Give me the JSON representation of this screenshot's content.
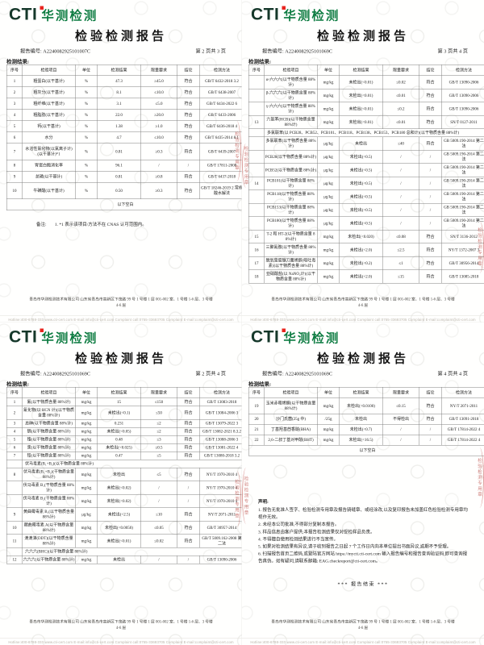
{
  "brand": {
    "logo_cti": "CTI",
    "logo_cn": "华测检测"
  },
  "report": {
    "title": "检验检测报告",
    "report_no_label": "报告编号: ",
    "results_label": "检测结果:",
    "columns": [
      "序号",
      "检验项目",
      "单位",
      "检测结果",
      "限量要求",
      "结论",
      "检测方法"
    ],
    "seal_text": "检验检测专用章",
    "footer_address": "青岛市华测检测技术有限公司 山东省青岛市高新区下茂路 99 号 1 号楼 1 层 001-002 室、1 号楼 1-6 层、3 号楼 4-6 层",
    "footer_contacts": "Hotline:400-6788-333    www.cti-cert.com    E-mail:info@cti-cert.com    Complaint call:0755-33683705    Complaint E-mail:complaint@cti-cert.com"
  },
  "pages": [
    {
      "report_no": "A2240082925101007C",
      "page_info": "第 2 页共 3 页",
      "rows": [
        [
          "1",
          "粗蛋白(以干基计)",
          "%",
          "47.3",
          "≥45.0",
          "符合",
          "GB/T 6432-2018 3.2"
        ],
        [
          "2",
          "粗灰分(以干基计)",
          "%",
          "8.1",
          "≤10.0",
          "符合",
          "GB/T 6438-2007"
        ],
        [
          "3",
          "粗纤维(以干基计)",
          "%",
          "3.1",
          "≤5.0",
          "符合",
          "GB/T 6434-2022 6"
        ],
        [
          "4",
          "粗脂肪(以干基计)",
          "%",
          "22.0",
          "≥20.0",
          "符合",
          "GB/T 6433-2006"
        ],
        [
          "5",
          "钙(以干基计)",
          "%",
          "1.38",
          "≥1.0",
          "符合",
          "GB/T 6436-2018 4"
        ],
        [
          "6",
          "水分",
          "%",
          "4.7",
          "≤10.0",
          "符合",
          "GB/T 6435-2014 8.1"
        ],
        [
          "7",
          "水溶性氯化物(以氯离子计)(以干基计)*1",
          "%",
          "0.81",
          "≥0.3",
          "符合",
          "GB/T 6439-2007"
        ],
        [
          "8",
          "胃蛋白酶消化率",
          "%",
          "96.1",
          "/",
          "/",
          "GB/T 17811-2008"
        ],
        [
          "9",
          "总磷(以干基计)",
          "%",
          "0.81",
          "≥0.8",
          "符合",
          "GB/T 6437-2018"
        ],
        [
          "10",
          "牛磺酸(以干基计)",
          "%",
          "0.50",
          "≥0.3",
          "符合",
          "GB/T 18246-2019 2 常规酸水解法"
        ]
      ],
      "blank_row": "以下空白",
      "note_label": "备注:",
      "note_text": "1. *1 表示该项目/方法不在 CNAS 认可范围内。"
    },
    {
      "report_no": "A2240082925101069C",
      "page_info": "第 3 页共 4 页",
      "rows": [
        [
          "",
          "α-六六六(以干物质含量 88%计)",
          "mg/kg",
          "未检出(<0.01)",
          "≤0.02",
          "符合",
          "GB/T 13090-2006"
        ],
        [
          "",
          "β-六六六(以干物质含量 88%计)",
          "mg/kg",
          "未检出(<0.01)",
          "≤0.01",
          "符合",
          "GB/T 13090-2006"
        ],
        [
          "",
          "γ-六六六(以干物质含量 88%计)",
          "mg/kg",
          "未检出(<0.01)",
          "≤0.2",
          "符合",
          "GB/T 13090-2006"
        ],
        [
          "13",
          "六氯苯(HCB)(以干物质含量 88%计)",
          "mg/kg",
          "未检出(<0.01)",
          "≤0.01",
          "符合",
          "SN/T 0127-2011"
        ],
        {
          "group": "多氯联苯(以 PCB28、PCB52、PCB101、PCB118、PCB138、PCB153、PCB180 总和计)(以干物质含量 88%计)"
        },
        [
          "",
          "多氯联苯(以干物质含量 88%计)",
          "μg/kg",
          "未检出",
          "≤40",
          "符合",
          "GB 5009.190-2014 第二法"
        ],
        [
          "",
          "PCB28(以干物质含量 88%计)",
          "μg/kg",
          "未检出(<0.5)",
          "/",
          "/",
          "GB 5009.190-2014 第二法"
        ],
        [
          "",
          "PCB52(以干物质含量 88%计)",
          "μg/kg",
          "未检出(<0.5)",
          "/",
          "/",
          "GB 5009.190-2014 第二法"
        ],
        [
          "14",
          "PCB101(以干物质含量 88%计)",
          "μg/kg",
          "未检出(<0.5)",
          "/",
          "/",
          "GB 5009.190-2014 第二法"
        ],
        [
          "",
          "PCB118(以干物质含量 88%计)",
          "μg/kg",
          "未检出(<0.5)",
          "/",
          "/",
          "GB 5009.190-2014 第二法"
        ],
        [
          "",
          "PCB153(以干物质含量 88%计)",
          "μg/kg",
          "未检出(<0.5)",
          "/",
          "/",
          "GB 5009.190-2014 第二法"
        ],
        [
          "",
          "PCB180(以干物质含量 88%计)",
          "μg/kg",
          "未检出(<0.5)",
          "/",
          "/",
          "GB 5009.190-2014 第二法"
        ],
        [
          "15",
          "T-2 和 HT-2(以干物质含量 88%计)",
          "mg/kg",
          "未检出(<0.020)",
          "≤0.08",
          "符合",
          "SN/T 3136-2012"
        ],
        [
          "16",
          "三聚氰胺(以干物质含量 88%计)",
          "mg/kg",
          "未检出(<2.0)",
          "≤2.5",
          "符合",
          "NY/T 1372-2007 3"
        ],
        [
          "17",
          "脱氧雪腐镰刀菌烯醇(呕吐毒素)(以干物质含量 88%计)",
          "mg/kg",
          "未检出(<0.2)",
          "≤1",
          "符合",
          "GB/T 30956-2014"
        ],
        [
          "18",
          "亚硝酸盐(以 NaNO₂计)(以干物质含量 88%计)",
          "mg/kg",
          "未检出(<2.0)",
          "≤15",
          "符合",
          "GB/T 13085-2018"
        ]
      ]
    },
    {
      "report_no": "A2240082925101069C",
      "page_info": "第 2 页共 4 页",
      "rows": [
        [
          "1",
          "氟(以干物质含量 88%计)",
          "mg/kg",
          "15",
          "≤150",
          "符合",
          "GB/T 13083-2018"
        ],
        [
          "2",
          "氰化物(以 HCN 计)(以干物质含量 88%计)",
          "mg/kg",
          "未检出(<0.1)",
          "≤50",
          "符合",
          "GB/T 13084-2006 3"
        ],
        [
          "3",
          "总砷(以干物质含量 88%计)",
          "mg/kg",
          "0.231",
          "≤2",
          "符合",
          "GB/T 13079-2022 3"
        ],
        [
          "4",
          "镉(以干物质含量 88%计)",
          "mg/kg",
          "未检出(<0.05)",
          "≤2",
          "符合",
          "GB/T 13082-2021 8.3.2"
        ],
        [
          "5",
          "铬(以干物质含量 88%计)",
          "mg/kg",
          "0.48",
          "≤3",
          "符合",
          "GB/T 13088-2006 3"
        ],
        [
          "6",
          "汞(以干物质含量 88%计)",
          "mg/kg",
          "未检出(<0.025)",
          "≤0.5",
          "符合",
          "GB/T 13081-2022 4"
        ],
        [
          "7",
          "铅(以干物质含量 88%计)",
          "mg/kg",
          "0.47",
          "≤5",
          "符合",
          "GB/T 13080-2018 3.2"
        ],
        {
          "group": "伏马毒素(B₁+B₂)(以干物质含量 88%计)"
        },
        [
          "8",
          "伏马毒素(B₁+B₂)(干物质含量 88%计)",
          "mg/kg",
          "未检出",
          "≤5",
          "符合",
          "NY/T 1970-2010 4"
        ],
        [
          "",
          "伏马毒素 B₁(干物质含量 88%计)",
          "mg/kg",
          "未检出(<0.02)",
          "/",
          "/",
          "NY/T 1970-2010 4"
        ],
        [
          "",
          "伏马毒素 B₂(干物质含量 88%计)",
          "mg/kg",
          "未检出(<0.02)",
          "/",
          "/",
          "NY/T 1970-2010 4"
        ],
        [
          "9",
          "黄曲霉毒素 B₁(以干物质含量 88%计)",
          "μg/kg",
          "未检出(<2.5)",
          "≤10",
          "符合",
          "NY/T 2071-2011"
        ],
        [
          "10",
          "赭曲霉毒素 A(以干物质含量 88%计)",
          "mg/kg",
          "未检出(<0.0050)",
          "≤0.05",
          "符合",
          "GB/T 30957-2014"
        ],
        [
          "11",
          "滴滴涕(DDT)(以干物质含量 88%计)",
          "mg/kg",
          "未检出(<0.01)",
          "≤0.02",
          "符合",
          "GB/T 5009.162-2008 第二法"
        ],
        {
          "group": "六六六(BHC)(以干物质含量 88%计)"
        },
        [
          "12",
          "六六六(以干物质含量 88%计)",
          "mg/kg",
          "未检出",
          "/",
          "/",
          "GB/T 13090-2006"
        ]
      ]
    },
    {
      "report_no": "A2240082925101069C",
      "page_info": "第 4 页共 4 页",
      "rows": [
        [
          "19",
          "玉米赤霉烯酮(以干物质含量 88%计)",
          "mg/kg",
          "未检出(<0.0100)",
          "≤0.15",
          "符合",
          "NY/T 2071-2011"
        ],
        [
          "20",
          "沙门氏菌(25g 中)",
          "/25g",
          "未检出",
          "不得检出",
          "符合",
          "GB/T 13091-2018"
        ],
        [
          "21",
          "丁基羟基茴香醚(BHA)",
          "mg/kg",
          "未检出(<0.7)",
          "/",
          "/",
          "GB/T 17814-2022 4"
        ],
        [
          "22",
          "2,6-二叔丁基对甲酚(BHT)",
          "mg/kg",
          "未检出(<16.5)",
          "/",
          "/",
          "GB/T 17814-2022 4"
        ]
      ],
      "blank_row": "以下空白",
      "statement_title": "声明:",
      "statements": [
        "1. 报告无批准人签字、检验检测专用章及报告骑缝章、或经涂改,以及复印报告未加盖红色检验检测专用章均视作无效。",
        "2. 未经本公司批准,不得部分复制本报告。",
        "3. 样品信息由客户提供;本报告检测结果仅对受检样品负责。",
        "4. 不得擅自使用检测结果进行不当宣传。",
        "5. 如果对检测结果有异议,请于收到报告之日起 7 个工作日内向本单位提出书面异议,逾期不予受理。",
        "6. 扫描报告首页二维码,或登陆官方网站 https://mycti.cti-cert.com 输入报告编号和报告查询验证码,即可查询报告真伪。如有疑问,请联系邮箱: EAG.checkreport@cti-cert.com。"
      ],
      "end_mark": "*** 报告结束 ***"
    }
  ]
}
